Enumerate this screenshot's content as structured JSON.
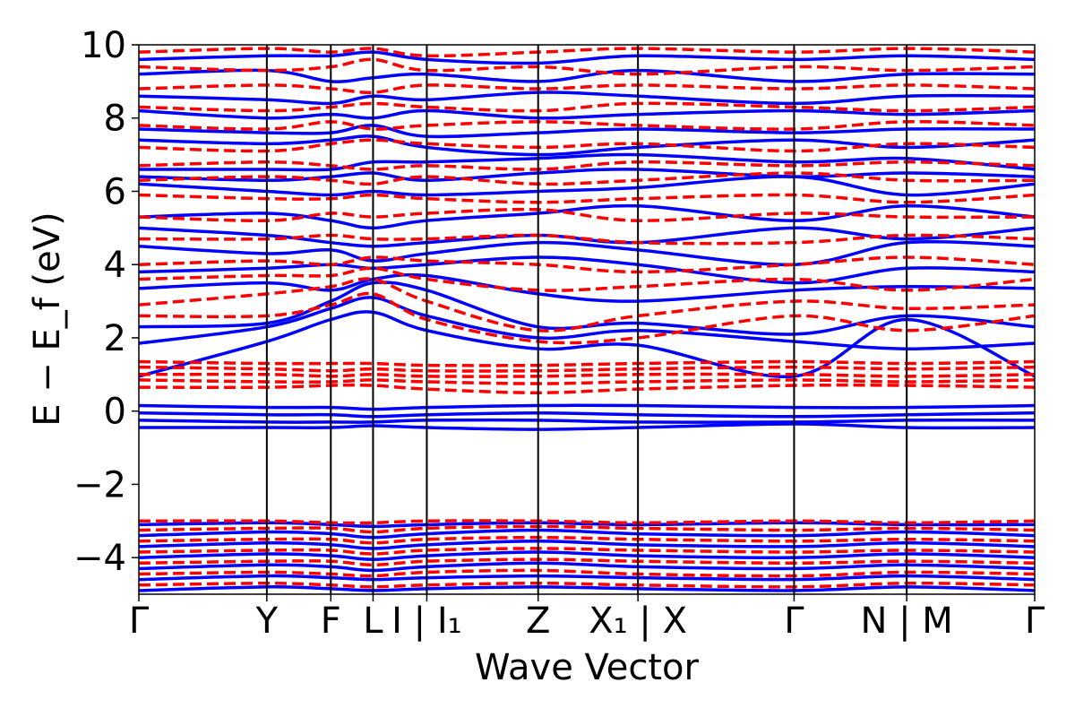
{
  "chart_data": {
    "type": "line",
    "title": "",
    "xlabel": "Wave Vector",
    "ylabel": "E − E_f (eV)",
    "ylim": [
      -5,
      10
    ],
    "y_ticks": [
      "10",
      "8",
      "6",
      "4",
      "2",
      "0",
      "−2",
      "−4"
    ],
    "y_tick_values": [
      10,
      8,
      6,
      4,
      2,
      0,
      -2,
      -4
    ],
    "x_range": [
      0,
      7.0
    ],
    "kpoint_positions": [
      0,
      1.0,
      1.5,
      1.83,
      2.25,
      3.12,
      3.9,
      5.12,
      6.0,
      7.0
    ],
    "kpoint_labels": [
      {
        "text": "Γ",
        "x": 0
      },
      {
        "text": "Y",
        "x": 1.0
      },
      {
        "text": "F",
        "x": 1.5
      },
      {
        "text": "L",
        "x": 1.83
      },
      {
        "text": "I | I₁",
        "x": 2.25
      },
      {
        "text": "Z",
        "x": 3.12
      },
      {
        "text": "X₁ | X",
        "x": 3.9
      },
      {
        "text": "Γ",
        "x": 5.12
      },
      {
        "text": "N | M",
        "x": 6.0
      },
      {
        "text": "Γ",
        "x": 7.0
      }
    ],
    "grid": false,
    "series": [
      {
        "style": "solid",
        "color": "#0000ff",
        "bands": [
          [
            -4.9,
            -4.8,
            -4.85,
            -4.9,
            -4.85,
            -4.8,
            -4.85,
            -4.9,
            -4.8,
            -4.9
          ],
          [
            -4.6,
            -4.5,
            -4.55,
            -4.6,
            -4.55,
            -4.5,
            -4.55,
            -4.6,
            -4.5,
            -4.6
          ],
          [
            -4.3,
            -4.2,
            -4.25,
            -4.35,
            -4.25,
            -4.15,
            -4.25,
            -4.3,
            -4.2,
            -4.3
          ],
          [
            -4.0,
            -3.9,
            -3.95,
            -4.05,
            -3.95,
            -3.85,
            -3.95,
            -4.0,
            -3.9,
            -4.0
          ],
          [
            -3.7,
            -3.6,
            -3.65,
            -3.75,
            -3.65,
            -3.55,
            -3.65,
            -3.7,
            -3.6,
            -3.7
          ],
          [
            -3.4,
            -3.3,
            -3.35,
            -3.45,
            -3.35,
            -3.25,
            -3.35,
            -3.4,
            -3.3,
            -3.4
          ],
          [
            -3.1,
            -3.05,
            -3.1,
            -3.15,
            -3.1,
            -3.05,
            -3.1,
            -3.05,
            -3.1,
            -3.1
          ],
          [
            -0.45,
            -0.45,
            -0.45,
            -0.4,
            -0.45,
            -0.5,
            -0.45,
            -0.35,
            -0.45,
            -0.45
          ],
          [
            -0.25,
            -0.3,
            -0.3,
            -0.3,
            -0.25,
            -0.25,
            -0.3,
            -0.3,
            -0.25,
            -0.25
          ],
          [
            -0.05,
            -0.1,
            -0.1,
            -0.15,
            -0.1,
            -0.05,
            -0.1,
            -0.15,
            -0.1,
            -0.05
          ],
          [
            0.15,
            0.1,
            0.1,
            0.05,
            0.1,
            0.15,
            0.15,
            0.1,
            0.1,
            0.15
          ],
          [
            0.95,
            1.9,
            2.5,
            2.7,
            2.2,
            1.7,
            1.8,
            0.95,
            2.5,
            0.95
          ],
          [
            1.85,
            2.3,
            2.8,
            3.1,
            2.6,
            2.0,
            2.2,
            1.9,
            1.7,
            1.85
          ],
          [
            2.3,
            2.4,
            3.0,
            3.5,
            3.3,
            2.3,
            2.4,
            2.1,
            2.6,
            2.3
          ],
          [
            3.35,
            3.5,
            3.3,
            3.6,
            3.7,
            3.2,
            3.0,
            3.3,
            3.4,
            3.35
          ],
          [
            3.8,
            3.9,
            4.0,
            3.9,
            4.0,
            4.2,
            4.0,
            3.5,
            3.9,
            3.8
          ],
          [
            4.5,
            4.3,
            4.4,
            4.1,
            4.3,
            4.6,
            4.4,
            4.0,
            4.6,
            4.5
          ],
          [
            5.0,
            4.8,
            4.6,
            4.5,
            4.6,
            4.8,
            4.6,
            5.0,
            4.7,
            5.0
          ],
          [
            5.3,
            5.4,
            5.2,
            5.0,
            5.2,
            5.4,
            5.6,
            5.2,
            5.6,
            5.3
          ],
          [
            6.2,
            6.0,
            5.9,
            6.0,
            5.9,
            6.0,
            6.1,
            6.4,
            5.9,
            6.2
          ],
          [
            6.4,
            6.3,
            6.4,
            6.5,
            6.3,
            6.5,
            6.6,
            6.4,
            6.5,
            6.4
          ],
          [
            6.6,
            6.6,
            6.6,
            6.8,
            6.8,
            6.9,
            7.0,
            6.8,
            6.9,
            6.6
          ],
          [
            7.4,
            7.3,
            7.4,
            7.5,
            7.2,
            7.0,
            7.2,
            7.4,
            7.2,
            7.4
          ],
          [
            7.7,
            7.6,
            7.6,
            7.8,
            7.5,
            7.6,
            7.7,
            7.6,
            7.7,
            7.7
          ],
          [
            8.2,
            8.0,
            8.1,
            8.0,
            8.2,
            8.0,
            8.1,
            8.2,
            8.1,
            8.2
          ],
          [
            8.6,
            8.5,
            8.4,
            8.6,
            8.5,
            8.7,
            8.6,
            8.4,
            8.6,
            8.6
          ],
          [
            9.2,
            9.3,
            9.0,
            9.1,
            9.2,
            9.0,
            9.3,
            9.0,
            9.2,
            9.2
          ],
          [
            9.6,
            9.7,
            9.7,
            9.8,
            9.6,
            9.5,
            9.7,
            9.6,
            9.7,
            9.6
          ]
        ]
      },
      {
        "style": "dashed",
        "color": "#ff0000",
        "bands": [
          [
            -4.75,
            -4.7,
            -4.75,
            -4.8,
            -4.75,
            -4.7,
            -4.75,
            -4.8,
            -4.7,
            -4.75
          ],
          [
            -4.45,
            -4.4,
            -4.45,
            -4.5,
            -4.4,
            -4.35,
            -4.45,
            -4.5,
            -4.4,
            -4.45
          ],
          [
            -4.15,
            -4.1,
            -4.1,
            -4.2,
            -4.1,
            -4.05,
            -4.1,
            -4.15,
            -4.1,
            -4.15
          ],
          [
            -3.85,
            -3.8,
            -3.8,
            -3.9,
            -3.8,
            -3.75,
            -3.8,
            -3.85,
            -3.8,
            -3.85
          ],
          [
            -3.55,
            -3.5,
            -3.5,
            -3.6,
            -3.5,
            -3.45,
            -3.5,
            -3.55,
            -3.5,
            -3.55
          ],
          [
            -3.25,
            -3.2,
            -3.2,
            -3.3,
            -3.2,
            -3.15,
            -3.2,
            -3.25,
            -3.2,
            -3.25
          ],
          [
            -3.0,
            -3.0,
            -3.05,
            -3.05,
            -3.0,
            -3.0,
            -3.05,
            -3.0,
            -3.05,
            -3.0
          ],
          [
            0.65,
            0.65,
            0.7,
            0.7,
            0.6,
            0.5,
            0.6,
            0.7,
            0.7,
            0.65
          ],
          [
            0.85,
            0.8,
            0.8,
            0.85,
            0.8,
            0.75,
            0.8,
            0.85,
            0.8,
            0.85
          ],
          [
            1.0,
            1.0,
            0.95,
            1.0,
            0.95,
            0.95,
            1.0,
            1.0,
            0.95,
            1.0
          ],
          [
            1.2,
            1.15,
            1.1,
            1.15,
            1.1,
            1.1,
            1.15,
            1.2,
            1.15,
            1.2
          ],
          [
            1.35,
            1.3,
            1.3,
            1.3,
            1.25,
            1.25,
            1.3,
            1.35,
            1.3,
            1.35
          ],
          [
            2.6,
            2.6,
            2.9,
            3.2,
            2.5,
            1.9,
            2.0,
            2.6,
            2.2,
            2.6
          ],
          [
            2.9,
            3.2,
            3.4,
            3.6,
            3.0,
            2.2,
            2.6,
            3.0,
            2.8,
            2.9
          ],
          [
            3.6,
            3.7,
            3.7,
            3.9,
            3.6,
            3.3,
            3.4,
            3.6,
            3.3,
            3.6
          ],
          [
            4.0,
            4.1,
            4.0,
            4.2,
            4.1,
            4.0,
            3.8,
            4.0,
            4.2,
            4.0
          ],
          [
            4.7,
            4.7,
            4.8,
            4.7,
            4.7,
            4.8,
            4.6,
            4.6,
            4.8,
            4.7
          ],
          [
            5.3,
            5.2,
            5.4,
            5.3,
            5.4,
            5.5,
            5.2,
            5.4,
            5.3,
            5.3
          ],
          [
            5.9,
            5.8,
            5.8,
            5.9,
            5.8,
            5.7,
            5.8,
            5.9,
            5.7,
            5.9
          ],
          [
            6.3,
            6.4,
            6.3,
            6.2,
            6.4,
            6.2,
            6.3,
            6.5,
            6.3,
            6.3
          ],
          [
            6.7,
            6.8,
            6.7,
            6.6,
            6.7,
            6.6,
            6.8,
            6.7,
            6.8,
            6.7
          ],
          [
            7.2,
            7.1,
            7.3,
            7.4,
            7.3,
            7.2,
            7.3,
            7.1,
            7.3,
            7.2
          ],
          [
            7.8,
            7.7,
            7.9,
            7.7,
            7.8,
            7.9,
            7.8,
            7.7,
            7.9,
            7.8
          ],
          [
            8.3,
            8.2,
            8.3,
            8.4,
            8.3,
            8.2,
            8.4,
            8.3,
            8.2,
            8.3
          ],
          [
            8.8,
            8.9,
            8.8,
            8.7,
            8.9,
            8.8,
            8.9,
            8.8,
            8.9,
            8.8
          ],
          [
            9.4,
            9.3,
            9.4,
            9.6,
            9.3,
            9.4,
            9.2,
            9.4,
            9.3,
            9.4
          ],
          [
            9.8,
            9.9,
            9.8,
            9.9,
            9.7,
            9.8,
            9.9,
            9.8,
            9.9,
            9.8
          ]
        ]
      }
    ]
  }
}
